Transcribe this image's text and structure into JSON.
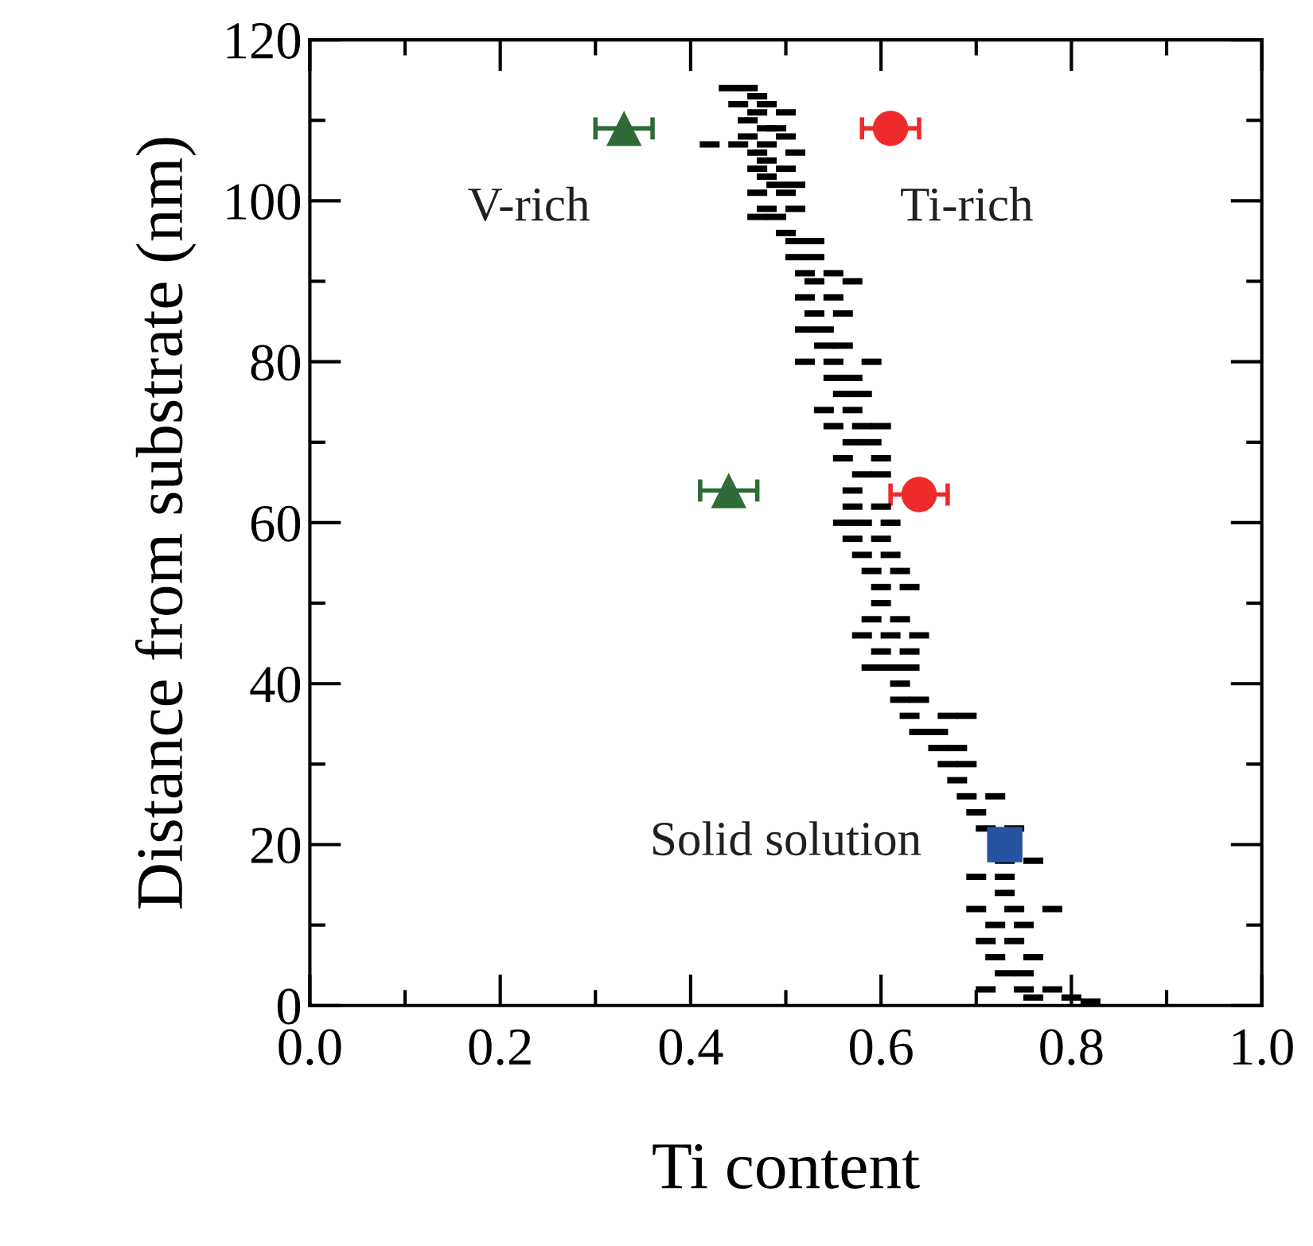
{
  "chart_data": {
    "type": "scatter",
    "xlabel": "Ti content",
    "ylabel": "Distance from substrate (nm)",
    "xlim": [
      0.0,
      1.0
    ],
    "ylim": [
      0,
      120
    ],
    "xticks": [
      {
        "value": 0,
        "label": "0.0"
      },
      0.2,
      0.4,
      0.6,
      0.8,
      {
        "value": 1,
        "label": "1.0"
      }
    ],
    "yticks": [
      0,
      20,
      40,
      60,
      80,
      100,
      120
    ],
    "grid": false,
    "legend": false,
    "series": [
      {
        "color": "#000000",
        "marker": "square",
        "x": [
          0.44,
          0.46,
          0.47,
          0.45,
          0.48,
          0.47,
          0.5,
          0.46,
          0.48,
          0.49,
          0.46,
          0.5,
          0.42,
          0.45,
          0.48,
          0.47,
          0.51,
          0.48,
          0.47,
          0.5,
          0.48,
          0.49,
          0.51,
          0.47,
          0.5,
          0.48,
          0.51,
          0.47,
          0.49,
          0.5,
          0.51,
          0.53,
          0.51,
          0.53,
          0.52,
          0.55,
          0.53,
          0.57,
          0.52,
          0.55,
          0.53,
          0.56,
          0.52,
          0.54,
          0.54,
          0.56,
          0.52,
          0.55,
          0.59,
          0.55,
          0.57,
          0.56,
          0.58,
          0.54,
          0.57,
          0.55,
          0.58,
          0.6,
          0.57,
          0.59,
          0.56,
          0.6,
          0.58,
          0.6,
          0.57,
          0.57,
          0.6,
          0.56,
          0.58,
          0.61,
          0.57,
          0.6,
          0.58,
          0.61,
          0.59,
          0.62,
          0.6,
          0.63,
          0.6,
          0.59,
          0.62,
          0.58,
          0.61,
          0.64,
          0.6,
          0.63,
          0.59,
          0.61,
          0.63,
          0.62,
          0.62,
          0.64,
          0.63,
          0.67,
          0.69,
          0.64,
          0.66,
          0.66,
          0.68,
          0.67,
          0.69,
          0.68,
          0.69,
          0.72,
          0.7,
          0.71,
          0.74,
          0.73,
          0.76,
          0.7,
          0.73,
          0.73,
          0.7,
          0.74,
          0.78,
          0.72,
          0.75,
          0.71,
          0.74,
          0.72,
          0.76,
          0.73,
          0.75,
          0.71,
          0.75,
          0.78,
          0.76,
          0.8,
          0.82
        ],
        "values": [
          114,
          114,
          113,
          112,
          112,
          111,
          111,
          110,
          109,
          109,
          108,
          108,
          107,
          107,
          107,
          106,
          106,
          105,
          104,
          104,
          103,
          102,
          102,
          101,
          101,
          99,
          99,
          98,
          98,
          96,
          95,
          95,
          93,
          93,
          91,
          91,
          90,
          90,
          88,
          88,
          86,
          86,
          84,
          84,
          82,
          82,
          80,
          80,
          80,
          78,
          78,
          76,
          76,
          74,
          74,
          72,
          72,
          72,
          70,
          70,
          68,
          68,
          66,
          66,
          64,
          62,
          62,
          60,
          60,
          60,
          58,
          58,
          56,
          56,
          54,
          54,
          52,
          52,
          50,
          48,
          48,
          46,
          46,
          46,
          44,
          44,
          42,
          42,
          42,
          40,
          38,
          38,
          36,
          36,
          36,
          34,
          34,
          32,
          32,
          30,
          30,
          28,
          26,
          26,
          24,
          22,
          22,
          18,
          18,
          16,
          16,
          14,
          12,
          12,
          12,
          10,
          10,
          8,
          8,
          6,
          6,
          4,
          4,
          2,
          2,
          2,
          1,
          1,
          0.5
        ]
      },
      {
        "color": "#2e6b37",
        "marker": "triangle",
        "x": [
          0.33,
          0.44
        ],
        "values": [
          109,
          64
        ],
        "xerrors": [
          0.03,
          0.03
        ]
      },
      {
        "color": "#ee2a2a",
        "marker": "circle",
        "x": [
          0.61,
          0.64
        ],
        "values": [
          109,
          63.5
        ],
        "xerrors": [
          0.03,
          0.03
        ]
      },
      {
        "color": "#2553a0",
        "marker": "square",
        "x": [
          0.73
        ],
        "values": [
          20
        ]
      }
    ],
    "annotations": [
      "V-rich",
      "Ti-rich",
      "Solid solution"
    ]
  }
}
